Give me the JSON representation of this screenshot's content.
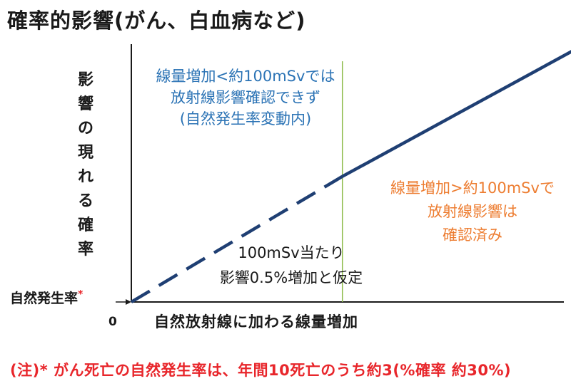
{
  "title": "確率的影響(がん、白血病など)",
  "colors": {
    "axis": "#1a1a1a",
    "line": "#1f3f73",
    "threshold_line": "#8dbb4a",
    "blue_text": "#2b73b5",
    "orange_text": "#ed7d31",
    "footnote": "#e8262b"
  },
  "chart_data": {
    "type": "line",
    "title": "",
    "xlabel": "自然放射線に加わる線量増加",
    "ylabel": "影響の現れる確率",
    "x_origin_label": "0",
    "y_origin_label": "自然発生率",
    "y_origin_mark": "*",
    "threshold_x": 100,
    "xlim": [
      0,
      210
    ],
    "ylim": [
      0,
      1
    ],
    "series": [
      {
        "style": "dashed",
        "x": [
          0,
          100
        ],
        "y": [
          0,
          0.498
        ]
      },
      {
        "style": "solid",
        "x": [
          100,
          210
        ],
        "y": [
          0.498,
          1.0
        ]
      }
    ],
    "annotations": {
      "below_threshold": "線量増加<約100mSvでは\n放射線影響確認できず\n(自然発生率変動内)",
      "above_threshold": "線量増加>約100mSvで\n放射線影響は\n確認済み",
      "assumption": "100mSv当たり\n影響0.5%増加と仮定"
    }
  },
  "footnote": "(注)* がん死亡の自然発生率は、年間10死亡のうち約3(%確率 約30%)"
}
